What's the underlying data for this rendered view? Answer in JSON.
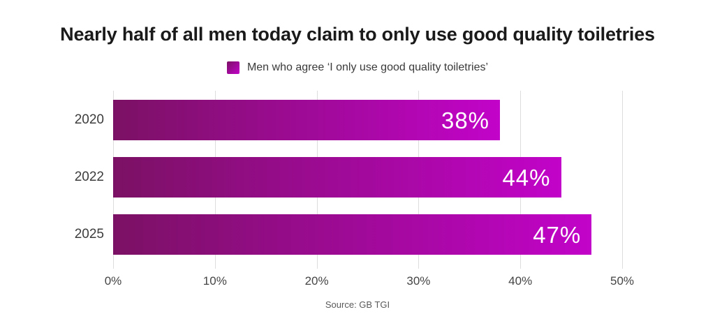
{
  "title": "Nearly half of all men today claim to only use good quality toiletries",
  "legend": {
    "label": "Men who agree ‘I only use good quality toiletries’",
    "swatch_from": "#7b1164",
    "swatch_to": "#c203c9"
  },
  "chart_data": {
    "type": "bar",
    "orientation": "horizontal",
    "title": "Nearly half of all men today claim to only use good quality toiletries",
    "series_name": "Men who agree ‘I only use good quality toiletries’",
    "categories": [
      "2020",
      "2022",
      "2025"
    ],
    "values": [
      38,
      44,
      47
    ],
    "value_labels": [
      "38%",
      "44%",
      "47%"
    ],
    "x_ticks": [
      "0%",
      "10%",
      "20%",
      "30%",
      "40%",
      "50%"
    ],
    "x_tick_values": [
      0,
      10,
      20,
      30,
      40,
      50
    ],
    "xlim": [
      0,
      50
    ],
    "grid": true,
    "legend_position": "top-center",
    "bar_gradient": {
      "from": "#7b1164",
      "to": "#c203c9"
    },
    "gridline_color": "#dddddd",
    "value_label_color": "#ffffff"
  },
  "source": "Source: GB TGI"
}
